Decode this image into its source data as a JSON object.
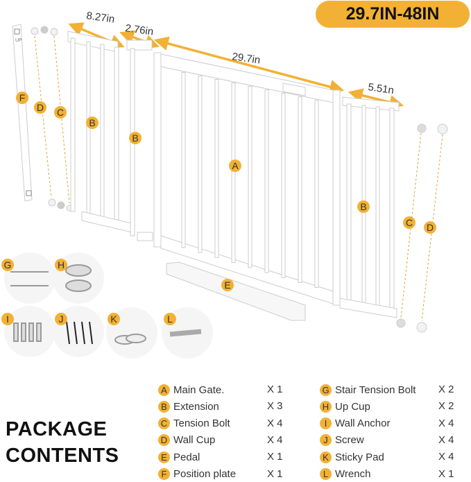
{
  "size_range": "29.7IN-48IN",
  "dimensions": {
    "ext1": "8.27in",
    "ext2": "2.76in",
    "main": "29.7in",
    "ext3": "5.51n"
  },
  "plate_text": "UP",
  "diagram_labels": {
    "A": "A",
    "B": "B",
    "C": "C",
    "D": "D",
    "E": "E",
    "F": "F",
    "G": "G",
    "H": "H",
    "I": "I",
    "J": "J",
    "K": "K",
    "L": "L"
  },
  "heading": [
    "PACKAGE",
    "CONTENTS"
  ],
  "accent_color": "#f2b134",
  "parts_left": [
    {
      "letter": "A",
      "name": "Main Gate.",
      "qty": "X 1"
    },
    {
      "letter": "B",
      "name": "Extension",
      "qty": "X 3"
    },
    {
      "letter": "C",
      "name": "Tension Bolt",
      "qty": "X 4"
    },
    {
      "letter": "D",
      "name": "Wall Cup",
      "qty": "X 4"
    },
    {
      "letter": "E",
      "name": "Pedal",
      "qty": "X 1"
    },
    {
      "letter": "F",
      "name": "Position plate",
      "qty": "X 1"
    }
  ],
  "parts_right": [
    {
      "letter": "G",
      "name": "Stair Tension Bolt",
      "qty": "X 2"
    },
    {
      "letter": "H",
      "name": "Up Cup",
      "qty": "X 2"
    },
    {
      "letter": "I",
      "name": "Wall Anchor",
      "qty": "X 4"
    },
    {
      "letter": "J",
      "name": "Screw",
      "qty": "X 4"
    },
    {
      "letter": "K",
      "name": "Sticky Pad",
      "qty": "X 4"
    },
    {
      "letter": "L",
      "name": "Wrench",
      "qty": "X 1"
    }
  ]
}
